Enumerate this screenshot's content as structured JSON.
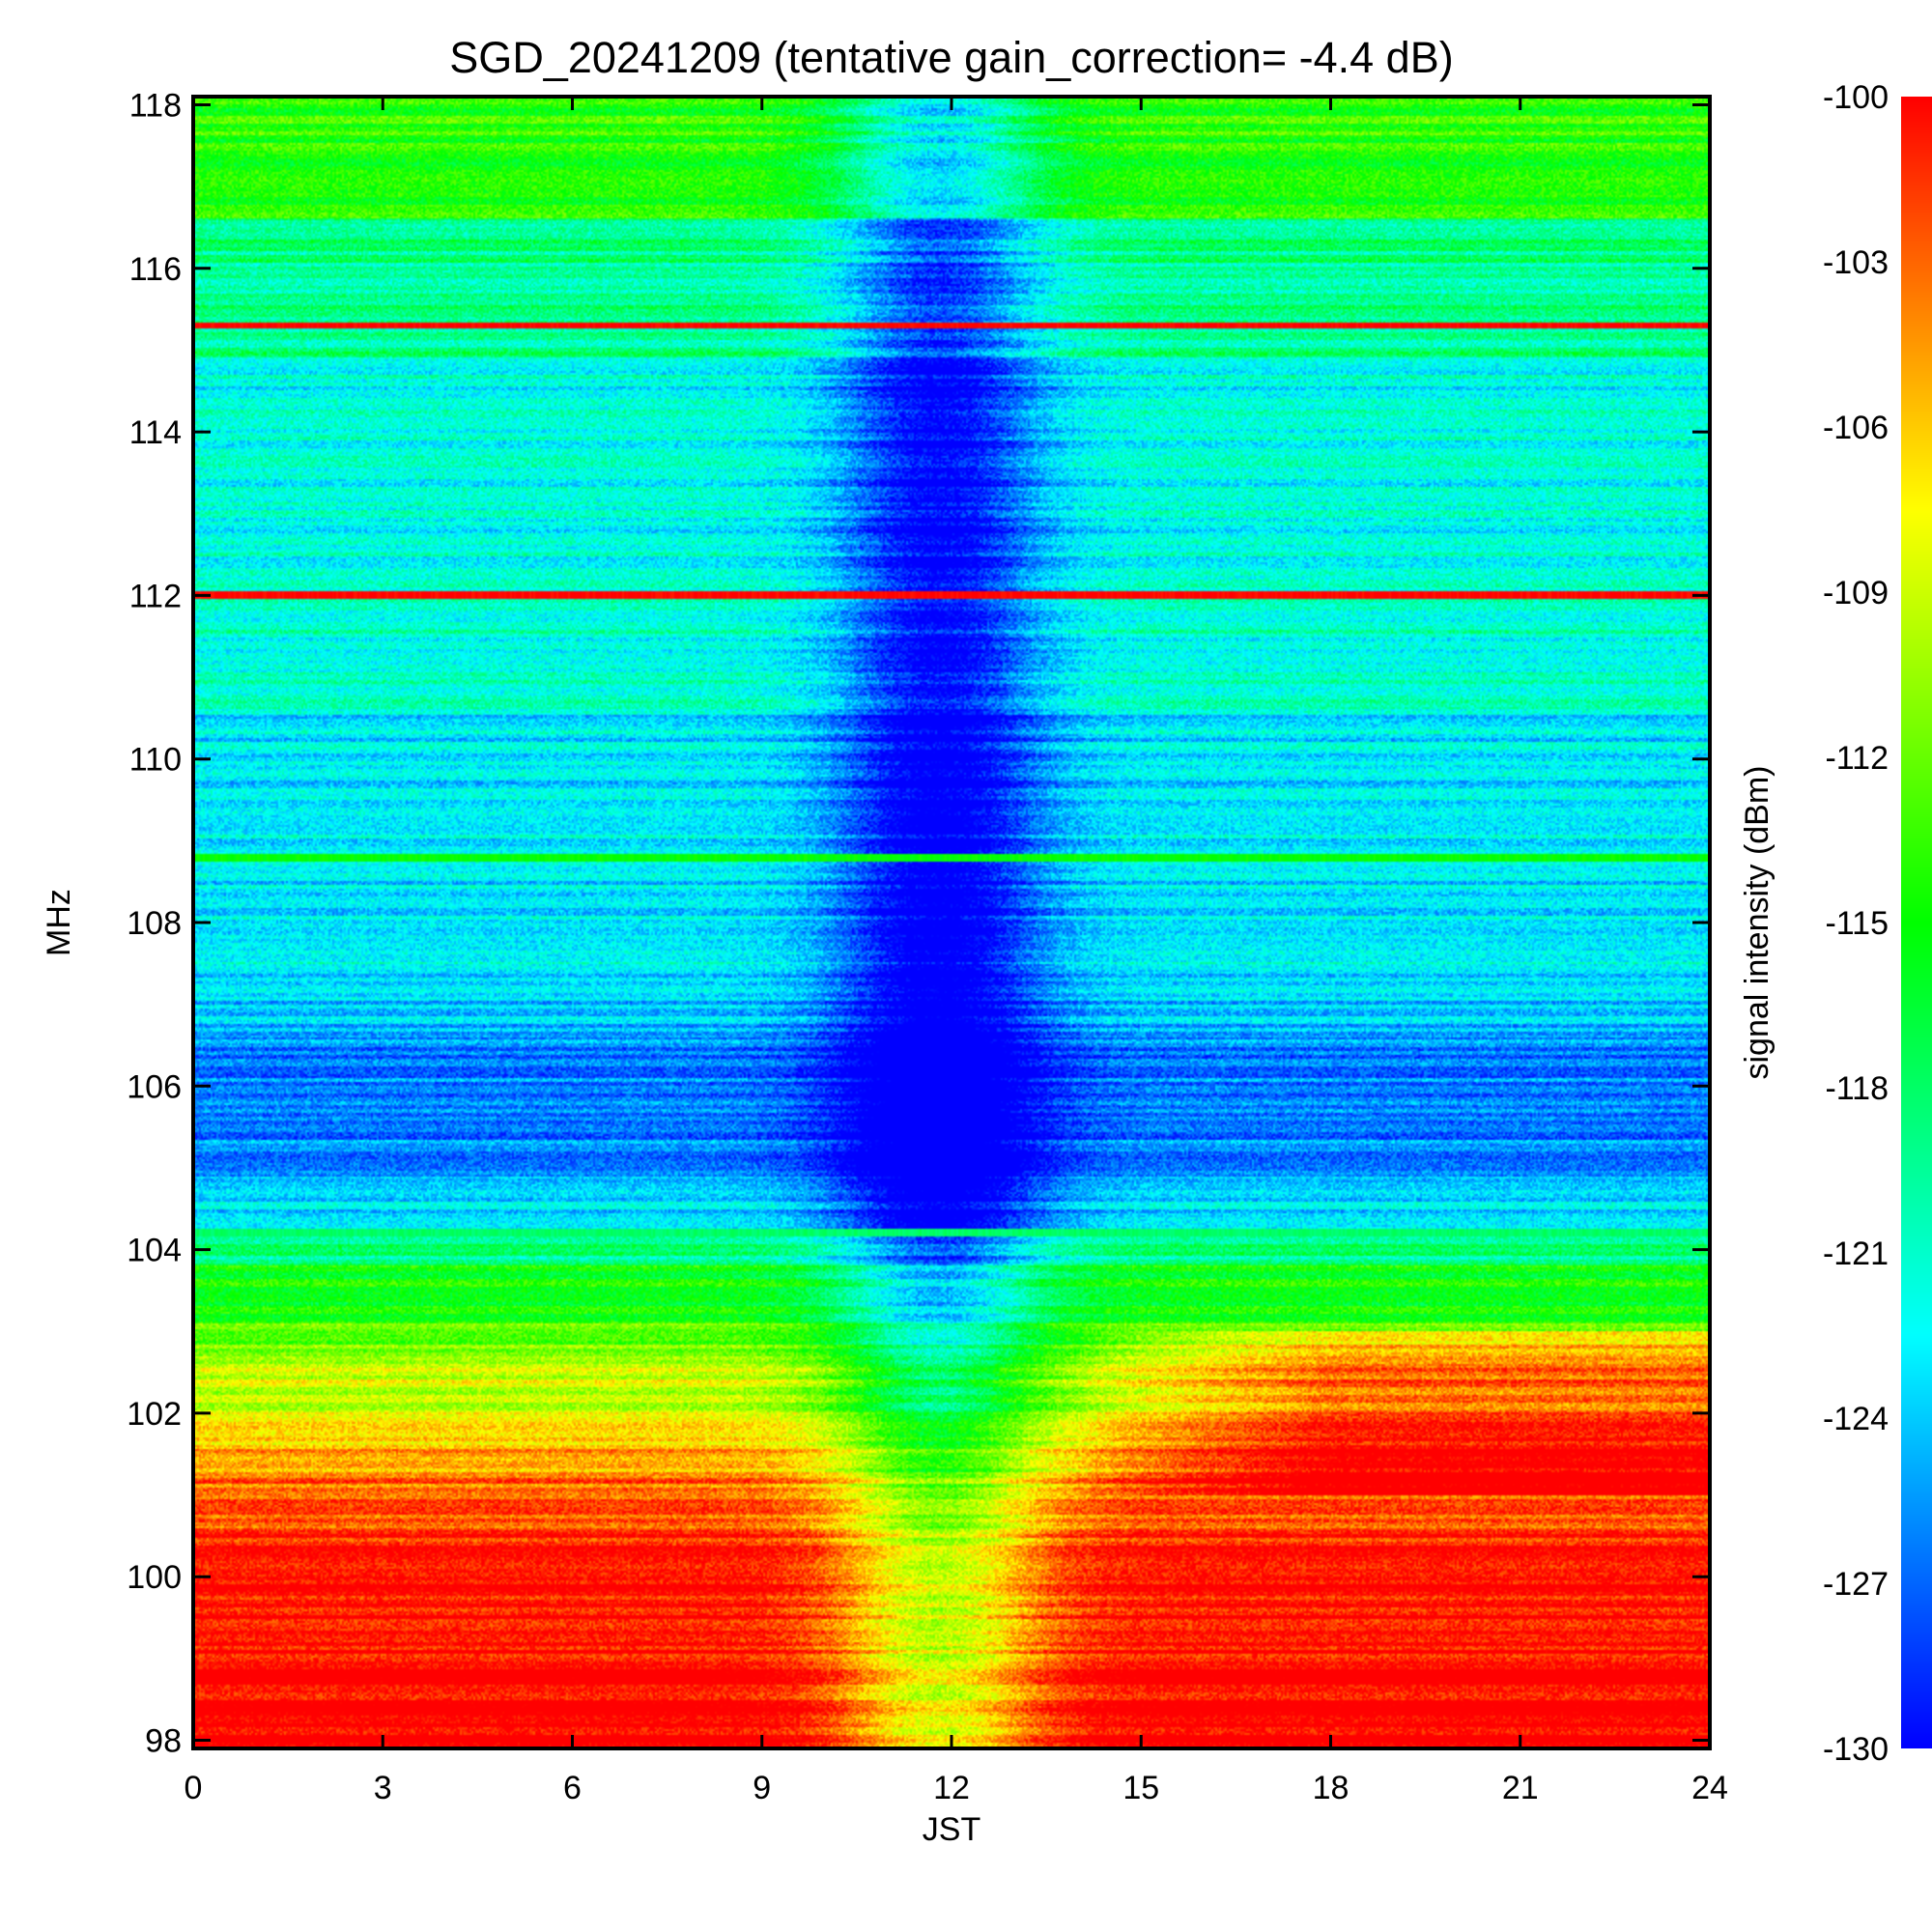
{
  "chart_data": {
    "type": "heatmap",
    "title": "SGD_20241209 (tentative gain_correction= -4.4 dB)",
    "xlabel": "JST",
    "ylabel": "MHz",
    "colorbar_label": "signal intensity (dBm)",
    "xlim": [
      0,
      24
    ],
    "ylim": [
      97.9,
      118.1
    ],
    "x_ticks": [
      0,
      3,
      6,
      9,
      12,
      15,
      18,
      21,
      24
    ],
    "y_ticks": [
      98,
      100,
      102,
      104,
      106,
      108,
      110,
      112,
      114,
      116,
      118
    ],
    "color_range": [
      -130,
      -100
    ],
    "colorbar_ticks": [
      -100,
      -103,
      -106,
      -109,
      -112,
      -115,
      -118,
      -121,
      -124,
      -127,
      -130
    ],
    "colormap": [
      "#0000ff",
      "#00ffff",
      "#00ff00",
      "#ffff00",
      "#ff0000"
    ],
    "frequency_bands_mhz": [
      {
        "from": 97.9,
        "to": 98.5,
        "level_dbm": -99
      },
      {
        "from": 98.5,
        "to": 100.1,
        "level_dbm": -100
      },
      {
        "from": 100.1,
        "to": 100.6,
        "level_dbm": -101
      },
      {
        "from": 100.6,
        "to": 101.2,
        "level_dbm": -103
      },
      {
        "from": 101.2,
        "to": 101.6,
        "level_dbm": -105
      },
      {
        "from": 101.6,
        "to": 102.0,
        "level_dbm": -107
      },
      {
        "from": 102.0,
        "to": 102.6,
        "level_dbm": -109
      },
      {
        "from": 102.6,
        "to": 103.1,
        "level_dbm": -112
      },
      {
        "from": 103.1,
        "to": 103.8,
        "level_dbm": -115
      },
      {
        "from": 103.8,
        "to": 104.2,
        "level_dbm": -119
      },
      {
        "from": 104.2,
        "to": 104.9,
        "level_dbm": -123
      },
      {
        "from": 104.9,
        "to": 106.6,
        "level_dbm": -126
      },
      {
        "from": 106.6,
        "to": 107.5,
        "level_dbm": -124
      },
      {
        "from": 107.5,
        "to": 108.0,
        "level_dbm": -122
      },
      {
        "from": 108.0,
        "to": 110.6,
        "level_dbm": -123
      },
      {
        "from": 110.6,
        "to": 112.0,
        "level_dbm": -121
      },
      {
        "from": 112.0,
        "to": 114.9,
        "level_dbm": -122
      },
      {
        "from": 114.9,
        "to": 116.6,
        "level_dbm": -119
      },
      {
        "from": 116.6,
        "to": 118.1,
        "level_dbm": -114
      }
    ],
    "constant_lines_mhz": [
      {
        "freq": 115.3,
        "level_dbm": -100
      },
      {
        "freq": 112.0,
        "level_dbm": -100
      },
      {
        "freq": 108.8,
        "level_dbm": -115
      },
      {
        "freq": 104.2,
        "level_dbm": -118
      }
    ],
    "daytime_absorption": {
      "center_jst": 11.8,
      "width_hours": 1.6,
      "max_drop_db": 9
    },
    "evening_rise": {
      "from_jst": 14.0,
      "freq_from": 101.0,
      "freq_to": 103.0,
      "rise_db": 6
    }
  }
}
